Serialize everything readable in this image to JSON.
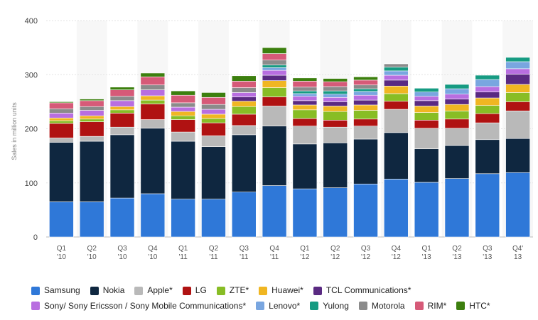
{
  "chart_data": {
    "type": "bar",
    "stacked": true,
    "ylabel": "Sales in million units",
    "ylim": [
      0,
      400
    ],
    "yticks": [
      0,
      100,
      200,
      300,
      400
    ],
    "categories": [
      [
        "Q1",
        "'10"
      ],
      [
        "Q2",
        "'10"
      ],
      [
        "Q3",
        "'10"
      ],
      [
        "Q4",
        "'10"
      ],
      [
        "Q1",
        "'11"
      ],
      [
        "Q2",
        "'11"
      ],
      [
        "Q3",
        "'11"
      ],
      [
        "Q4",
        "'11"
      ],
      [
        "Q1",
        "'12"
      ],
      [
        "Q2",
        "'12"
      ],
      [
        "Q3",
        "'12"
      ],
      [
        "Q4",
        "'12"
      ],
      [
        "Q1",
        "'13"
      ],
      [
        "Q2",
        "'13"
      ],
      [
        "Q3",
        "'13"
      ],
      [
        "Q4'",
        "13"
      ]
    ],
    "grid": true,
    "legend_position": "bottom",
    "series": [
      {
        "name": "Samsung",
        "color": "#2f78d8",
        "values": [
          65,
          65,
          72,
          80,
          70,
          70,
          83,
          95,
          89,
          91,
          98,
          107,
          101,
          108,
          117,
          119
        ]
      },
      {
        "name": "Nokia",
        "color": "#0f2740",
        "values": [
          110,
          112,
          117,
          121,
          107,
          97,
          106,
          110,
          83,
          83,
          83,
          86,
          62,
          61,
          63,
          63
        ]
      },
      {
        "name": "Apple*",
        "color": "#b9b9b9",
        "values": [
          8,
          9,
          14,
          16,
          17,
          20,
          17,
          37,
          33,
          29,
          24,
          43,
          38,
          32,
          31,
          51
        ]
      },
      {
        "name": "LG",
        "color": "#b01212",
        "values": [
          27,
          27,
          26,
          29,
          23,
          24,
          21,
          17,
          14,
          13,
          13,
          15,
          15,
          17,
          17,
          17
        ]
      },
      {
        "name": "ZTE*",
        "color": "#88bd25",
        "values": [
          5,
          5,
          6,
          7,
          7,
          8,
          14,
          17,
          16,
          16,
          16,
          14,
          14,
          15,
          15,
          17
        ]
      },
      {
        "name": "Huawei*",
        "color": "#f0b622",
        "values": [
          5,
          6,
          6,
          8,
          8,
          8,
          10,
          13,
          9,
          10,
          10,
          14,
          12,
          12,
          14,
          15
        ]
      },
      {
        "name": "TCL Communications*",
        "color": "#5a2a82",
        "values": [
          0,
          0,
          0,
          0,
          0,
          0,
          8,
          10,
          8,
          8,
          9,
          11,
          10,
          10,
          11,
          19
        ]
      },
      {
        "name": "Sony/ Sony Ericsson / Sony Mobile Communications*",
        "color": "#b86ee0",
        "values": [
          9,
          10,
          11,
          11,
          8,
          9,
          8,
          9,
          8,
          8,
          9,
          9,
          8,
          9,
          10,
          10
        ]
      },
      {
        "name": "Lenovo*",
        "color": "#79a6e0",
        "values": [
          0,
          0,
          0,
          0,
          0,
          0,
          0,
          5,
          5,
          6,
          7,
          8,
          8,
          10,
          13,
          13
        ]
      },
      {
        "name": "Yulong",
        "color": "#169b82",
        "values": [
          0,
          0,
          0,
          0,
          0,
          0,
          0,
          5,
          5,
          6,
          5,
          7,
          7,
          8,
          8,
          8
        ]
      },
      {
        "name": "Motorola",
        "color": "#8b8b8b",
        "values": [
          8,
          7,
          8,
          9,
          8,
          9,
          9,
          9,
          7,
          8,
          7,
          6,
          0,
          0,
          0,
          0
        ]
      },
      {
        "name": "RIM*",
        "color": "#d65a78",
        "values": [
          11,
          11,
          12,
          15,
          14,
          13,
          12,
          12,
          11,
          9,
          9,
          0,
          0,
          0,
          0,
          0
        ]
      },
      {
        "name": "HTC*",
        "color": "#3c7f0e",
        "values": [
          2,
          3,
          5,
          7,
          8,
          9,
          10,
          11,
          6,
          6,
          6,
          0,
          0,
          0,
          0,
          0
        ]
      }
    ]
  }
}
